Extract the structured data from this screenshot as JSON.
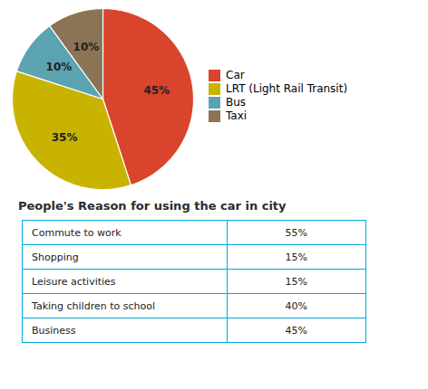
{
  "chart_data": [
    {
      "type": "pie",
      "categories": [
        "Car",
        "LRT (Light Rail Transit)",
        "Bus",
        "Taxi"
      ],
      "values": [
        45,
        35,
        10,
        10
      ],
      "value_labels": [
        "45%",
        "35%",
        "10%",
        "10%"
      ],
      "colors": [
        "#d9442c",
        "#c8b400",
        "#5ba3b0",
        "#8b7355"
      ],
      "data_labels": true,
      "legend": "right"
    },
    {
      "type": "table",
      "title": "People's Reason for using the car in city",
      "categories": [
        "Commute to work",
        "Shopping",
        "Leisure activities",
        "Taking children to school",
        "Business"
      ],
      "values": [
        55,
        15,
        15,
        40,
        45
      ],
      "value_labels": [
        "55%",
        "15%",
        "15%",
        "40%",
        "45%"
      ],
      "color": "#00aadd"
    }
  ]
}
